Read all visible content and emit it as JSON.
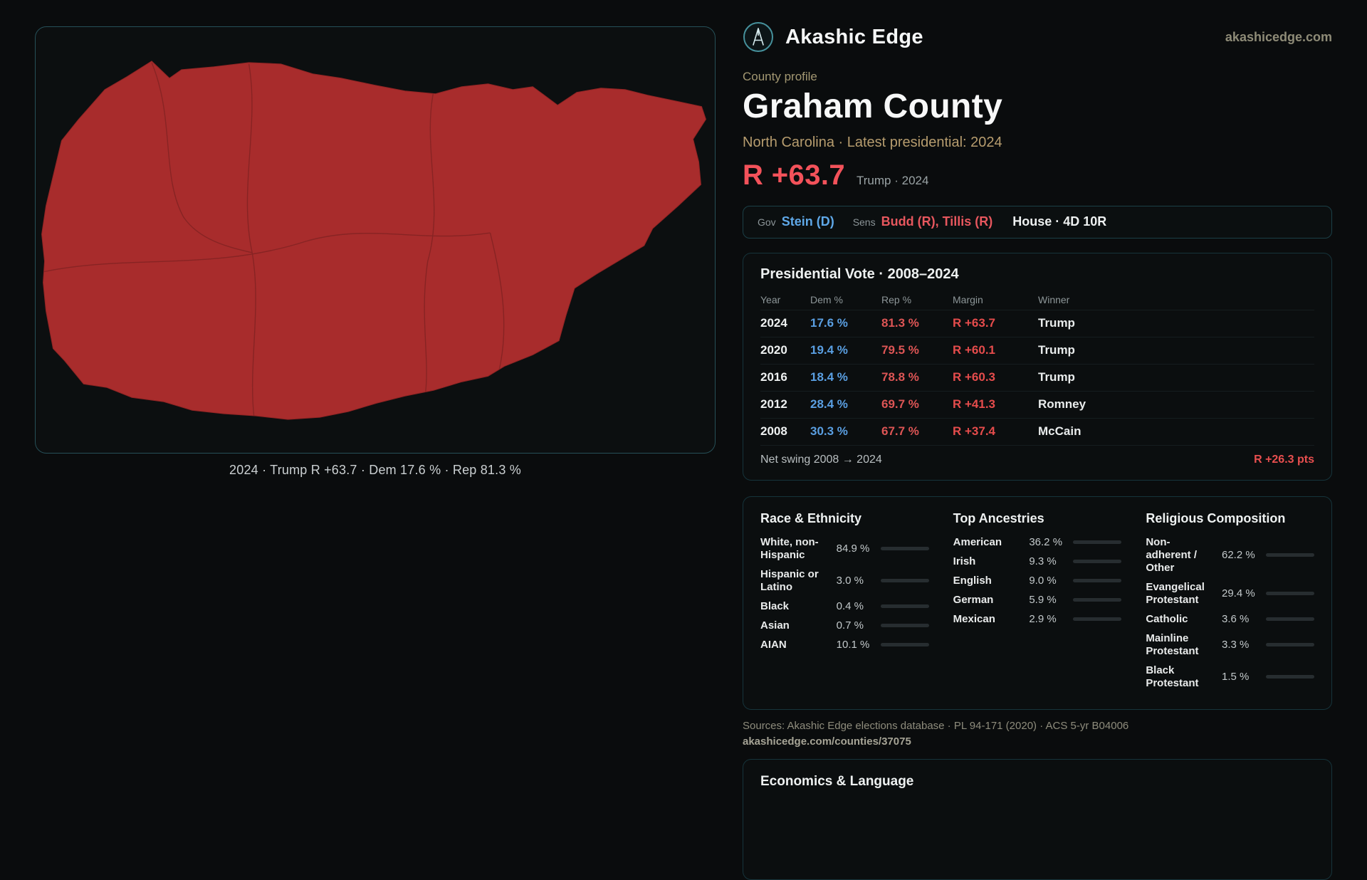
{
  "brand": {
    "name": "Akashic Edge",
    "domain": "akashicedge.com",
    "logo_icon": "akashic-edge-sigil"
  },
  "map": {
    "caption": "2024 · Trump R +63.7 · Dem 17.6 % · Rep 81.3 %"
  },
  "profile": {
    "kicker": "County profile",
    "title": "Graham County",
    "subtitle": "North Carolina · Latest presidential: 2024",
    "margin_big": "R +63.7",
    "margin_note": "Trump · 2024"
  },
  "officials": {
    "gov_label": "Gov",
    "gov_value": "Stein (D)",
    "sens_label": "Sens",
    "sens_value": "Budd (R), Tillis (R)",
    "house_value": "House · 4D 10R"
  },
  "vote_table": {
    "title": "Presidential Vote · 2008–2024",
    "columns": [
      "Year",
      "Dem %",
      "Rep %",
      "Margin",
      "Winner"
    ],
    "rows": [
      {
        "year": "2024",
        "dem": "17.6 %",
        "rep": "81.3 %",
        "margin": "R +63.7",
        "winner": "Trump"
      },
      {
        "year": "2020",
        "dem": "19.4 %",
        "rep": "79.5 %",
        "margin": "R +60.1",
        "winner": "Trump"
      },
      {
        "year": "2016",
        "dem": "18.4 %",
        "rep": "78.8 %",
        "margin": "R +60.3",
        "winner": "Trump"
      },
      {
        "year": "2012",
        "dem": "28.4 %",
        "rep": "69.7 %",
        "margin": "R +41.3",
        "winner": "Romney"
      },
      {
        "year": "2008",
        "dem": "30.3 %",
        "rep": "67.7 %",
        "margin": "R +37.4",
        "winner": "McCain"
      }
    ],
    "footer_label": "Net swing 2008 → 2024",
    "footer_value": "R +26.3 pts"
  },
  "demographics": {
    "race": {
      "title": "Race & Ethnicity",
      "rows": [
        {
          "label": "White, non-Hispanic",
          "value": "84.9 %",
          "pct": 84.9,
          "color": "#8d9cb0"
        },
        {
          "label": "Hispanic or Latino",
          "value": "3.0 %",
          "pct": 3.0,
          "color": "#d05c5c"
        },
        {
          "label": "Black",
          "value": "0.4 %",
          "pct": 0.4,
          "color": "#9aa1a5"
        },
        {
          "label": "Asian",
          "value": "0.7 %",
          "pct": 0.7,
          "color": "#9aa1a5"
        },
        {
          "label": "AIAN",
          "value": "10.1 %",
          "pct": 10.1,
          "color": "#e2893b"
        }
      ]
    },
    "ancestry": {
      "title": "Top Ancestries",
      "rows": [
        {
          "label": "American",
          "value": "36.2 %",
          "pct": 36.2,
          "color": "#98a1a6"
        },
        {
          "label": "Irish",
          "value": "9.3 %",
          "pct": 9.3,
          "color": "#98a1a6"
        },
        {
          "label": "English",
          "value": "9.0 %",
          "pct": 9.0,
          "color": "#98a1a6"
        },
        {
          "label": "German",
          "value": "5.9 %",
          "pct": 5.9,
          "color": "#98a1a6"
        },
        {
          "label": "Mexican",
          "value": "2.9 %",
          "pct": 2.9,
          "color": "#d8bb44"
        }
      ]
    },
    "religion": {
      "title": "Religious Composition",
      "rows": [
        {
          "label": "Non-adherent / Other",
          "value": "62.2 %",
          "pct": 62.2,
          "color": "#98a1a6"
        },
        {
          "label": "Evangelical Protestant",
          "value": "29.4 %",
          "pct": 29.4,
          "color": "#e4797d"
        },
        {
          "label": "Catholic",
          "value": "3.6 %",
          "pct": 3.6,
          "color": "#d8bb44"
        },
        {
          "label": "Mainline Protestant",
          "value": "3.3 %",
          "pct": 3.3,
          "color": "#5f9fdf"
        },
        {
          "label": "Black Protestant",
          "value": "1.5 %",
          "pct": 1.5,
          "color": "#98a1a6"
        }
      ]
    }
  },
  "sources": {
    "line1": "Sources: Akashic Edge elections database · PL 94-171 (2020) · ACS 5-yr B04006",
    "line2": "akashicedge.com/counties/37075"
  },
  "economics": {
    "title": "Economics & Language"
  },
  "colors": {
    "dem_blue": "#5fa8e8",
    "rep_red": "#e7575e",
    "headline_red": "#f3525a",
    "gold_text": "#b69c6e",
    "county_fill": "#a82c2c",
    "panel_border": "#16343b",
    "map_border": "#265058"
  }
}
